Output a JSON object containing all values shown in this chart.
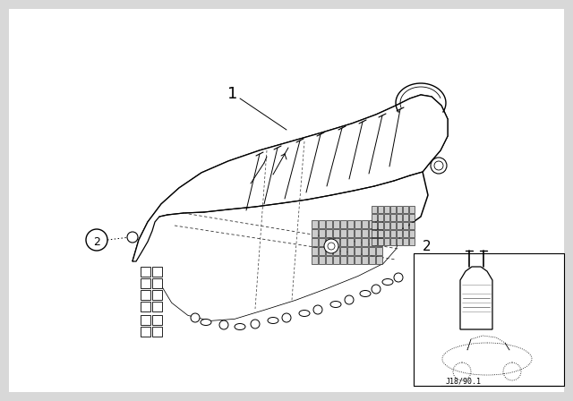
{
  "background_color": "#d8d8d8",
  "panel_bg": "#ffffff",
  "line_color": "#000000",
  "part_number": "J18/90.1",
  "label_1": "1",
  "label_2": "2",
  "fig_width": 6.4,
  "fig_height": 4.48,
  "dpi": 100
}
